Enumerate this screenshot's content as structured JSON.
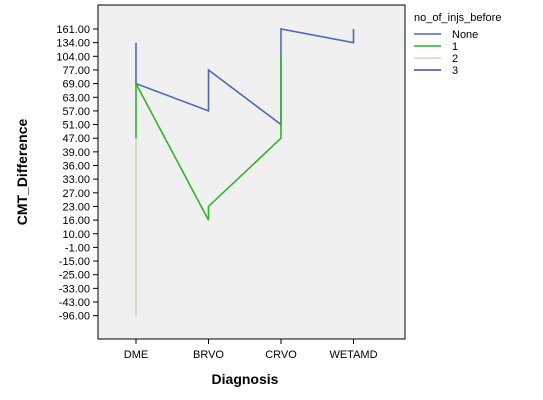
{
  "chart_data": {
    "type": "line",
    "xlabel": "Diagnosis",
    "ylabel": "CMT_Difference",
    "categories": [
      "DME",
      "BRVO",
      "CRVO",
      "WETAMD"
    ],
    "y_tick_labels": [
      "161.00",
      "134.00",
      "104.00",
      "77.00",
      "69.00",
      "63.00",
      "57.00",
      "51.00",
      "47.00",
      "39.00",
      "36.00",
      "33.00",
      "27.00",
      "23.00",
      "16.00",
      "10.00",
      "-1.00",
      "-15.00",
      "-25.00",
      "-33.00",
      "-43.00",
      "-96.00"
    ],
    "legend_title": "no_of_injs_before",
    "legend_position": "right",
    "grid": false,
    "plot_background": "#f0f0f0",
    "series": [
      {
        "name": "None",
        "color": "#4a6bb4",
        "points": [
          {
            "x": "DME",
            "y": "134.00"
          },
          {
            "x": "DME",
            "y": "69.00"
          },
          {
            "x": "BRVO",
            "y": "57.00"
          },
          {
            "x": "BRVO",
            "y": "77.00"
          },
          {
            "x": "CRVO",
            "y": "51.00"
          },
          {
            "x": "CRVO",
            "y": "161.00"
          },
          {
            "x": "WETAMD",
            "y": "134.00"
          },
          {
            "x": "WETAMD",
            "y": "161.00"
          }
        ]
      },
      {
        "name": "1",
        "color": "#2db52d",
        "points": [
          {
            "x": "DME",
            "y": "47.00"
          },
          {
            "x": "DME",
            "y": "69.00"
          },
          {
            "x": "BRVO",
            "y": "16.00"
          },
          {
            "x": "BRVO",
            "y": "23.00"
          },
          {
            "x": "CRVO",
            "y": "47.00"
          },
          {
            "x": "CRVO",
            "y": "104.00"
          }
        ]
      },
      {
        "name": "2",
        "color": "#c5dfae",
        "points": [
          {
            "x": "DME",
            "y": "47.00"
          },
          {
            "x": "DME",
            "y": "-96.00"
          }
        ]
      },
      {
        "name": "3",
        "color": "#5c3d99",
        "points": []
      }
    ]
  }
}
